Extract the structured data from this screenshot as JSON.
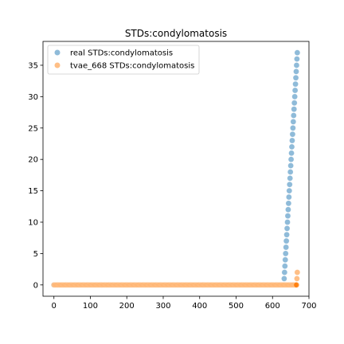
{
  "chart_data": {
    "type": "scatter",
    "title": "STDs:condylomatosis",
    "xlabel": "",
    "ylabel": "",
    "xlim": [
      -30,
      700
    ],
    "ylim": [
      -1.8,
      38.8
    ],
    "xticks": [
      0,
      100,
      200,
      300,
      400,
      500,
      600,
      700
    ],
    "yticks": [
      0,
      5,
      10,
      15,
      20,
      25,
      30,
      35
    ],
    "grid": false,
    "legend": "top-left",
    "series": [
      {
        "name": "real STDs:condylomatosis",
        "color": "#1f77b4",
        "baseline": {
          "x_start": 0,
          "x_end": 631,
          "y": 0
        },
        "points": [
          [
            632,
            1
          ],
          [
            633,
            2
          ],
          [
            634,
            3
          ],
          [
            635,
            4
          ],
          [
            636,
            5
          ],
          [
            637,
            6
          ],
          [
            638,
            7
          ],
          [
            639,
            8
          ],
          [
            640,
            9
          ],
          [
            641,
            10
          ],
          [
            642,
            11
          ],
          [
            643,
            12
          ],
          [
            644,
            13
          ],
          [
            645,
            14
          ],
          [
            646,
            15
          ],
          [
            647,
            16
          ],
          [
            648,
            17
          ],
          [
            649,
            18
          ],
          [
            650,
            19
          ],
          [
            651,
            20
          ],
          [
            652,
            21
          ],
          [
            653,
            22
          ],
          [
            654,
            23
          ],
          [
            655,
            24
          ],
          [
            656,
            25
          ],
          [
            657,
            26
          ],
          [
            658,
            27
          ],
          [
            659,
            28
          ],
          [
            660,
            29
          ],
          [
            661,
            30
          ],
          [
            662,
            31
          ],
          [
            663,
            32
          ],
          [
            664,
            33
          ],
          [
            665,
            34
          ],
          [
            666,
            35
          ],
          [
            667,
            36
          ],
          [
            668,
            37
          ]
        ]
      },
      {
        "name": "tvae_668 STDs:condylomatosis",
        "color": "#ff7f0e",
        "baseline": {
          "x_start": 0,
          "x_end": 665,
          "y": 0
        },
        "points": [
          [
            666,
            0
          ],
          [
            667,
            1
          ],
          [
            668,
            2
          ]
        ]
      }
    ]
  }
}
